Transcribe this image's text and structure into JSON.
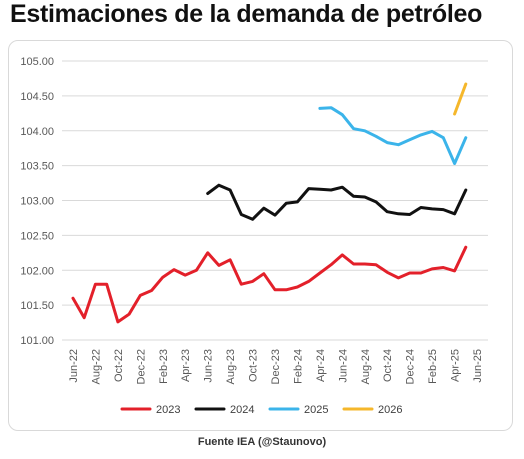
{
  "title": "Estimaciones de la demanda de petróleo",
  "source": "Fuente IEA (@Staunovo)",
  "chart_data": {
    "type": "line",
    "title": "Estimaciones de la demanda de petróleo",
    "xlabel": "",
    "ylabel": "",
    "ylim": [
      101.0,
      105.0
    ],
    "yticks": [
      "101.00",
      "101.50",
      "102.00",
      "102.50",
      "103.00",
      "103.50",
      "104.00",
      "104.50",
      "105.00"
    ],
    "xticks": [
      "Jun-22",
      "Aug-22",
      "Oct-22",
      "Dec-22",
      "Feb-23",
      "Apr-23",
      "Jun-23",
      "Aug-23",
      "Oct-23",
      "Dec-23",
      "Feb-24",
      "Apr-24",
      "Jun-24",
      "Aug-24",
      "Oct-24",
      "Dec-24",
      "Feb-25",
      "Apr-25",
      "Jun-25"
    ],
    "grid": true,
    "legend_position": "bottom",
    "series": [
      {
        "name": "2023",
        "color": "#e3202a",
        "start_month": 0,
        "values": [
          101.6,
          101.32,
          101.8,
          101.8,
          101.26,
          101.37,
          101.64,
          101.71,
          101.9,
          102.01,
          101.93,
          102.0,
          102.25,
          102.07,
          102.15,
          101.8,
          101.84,
          101.95,
          101.72,
          101.72,
          101.76,
          101.84,
          101.96,
          102.08,
          102.22,
          102.09,
          102.09,
          102.08,
          101.97,
          101.89,
          101.96,
          101.96,
          102.02,
          102.04,
          101.99,
          102.33
        ]
      },
      {
        "name": "2024",
        "color": "#111111",
        "start_month": 12,
        "values": [
          103.1,
          103.22,
          103.15,
          102.8,
          102.73,
          102.89,
          102.79,
          102.96,
          102.98,
          103.17,
          103.16,
          103.15,
          103.19,
          103.06,
          103.05,
          102.98,
          102.84,
          102.81,
          102.8,
          102.9,
          102.88,
          102.87,
          102.81,
          103.15
        ]
      },
      {
        "name": "2025",
        "color": "#3bb4ea",
        "start_month": 22,
        "values": [
          104.32,
          104.33,
          104.23,
          104.03,
          104.0,
          103.92,
          103.83,
          103.8,
          103.87,
          103.94,
          103.99,
          103.9,
          103.53,
          103.9
        ]
      },
      {
        "name": "2026",
        "color": "#f5b72b",
        "start_month": 34,
        "values": [
          104.24,
          104.67
        ]
      }
    ]
  }
}
